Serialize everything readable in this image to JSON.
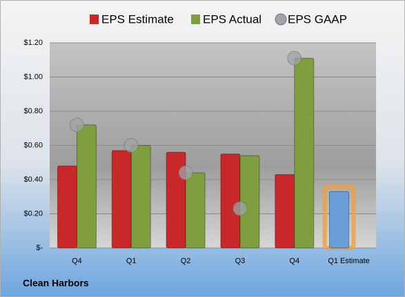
{
  "chart_data": {
    "type": "bar",
    "title": "Clean Harbors",
    "categories": [
      "Q4",
      "Q1",
      "Q2",
      "Q3",
      "Q4",
      "Q1 Estimate"
    ],
    "series": [
      {
        "name": "EPS Estimate",
        "color": "#c8282a",
        "colors": [
          "#c8282a",
          "#c8282a",
          "#c8282a",
          "#c8282a",
          "#c8282a",
          "#6a9fd8"
        ],
        "values": [
          0.48,
          0.57,
          0.56,
          0.55,
          0.43,
          0.33
        ]
      },
      {
        "name": "EPS Actual",
        "color": "#7f9f3f",
        "values": [
          0.72,
          0.6,
          0.44,
          0.54,
          1.11,
          null
        ]
      },
      {
        "name": "EPS GAAP",
        "color": "#a0a4a8",
        "marker": "circle",
        "values": [
          0.72,
          0.6,
          0.44,
          0.23,
          1.11,
          null
        ]
      }
    ],
    "ylim": [
      0,
      1.2
    ],
    "yticks": [
      {
        "value": 0,
        "label": "$-"
      },
      {
        "value": 0.2,
        "label": "$0.20"
      },
      {
        "value": 0.4,
        "label": "$0.40"
      },
      {
        "value": 0.6,
        "label": "$0.60"
      },
      {
        "value": 0.8,
        "label": "$0.80"
      },
      {
        "value": 1.0,
        "label": "$1.00"
      },
      {
        "value": 1.2,
        "label": "$1.20"
      }
    ],
    "grid": true,
    "legend": "top"
  }
}
